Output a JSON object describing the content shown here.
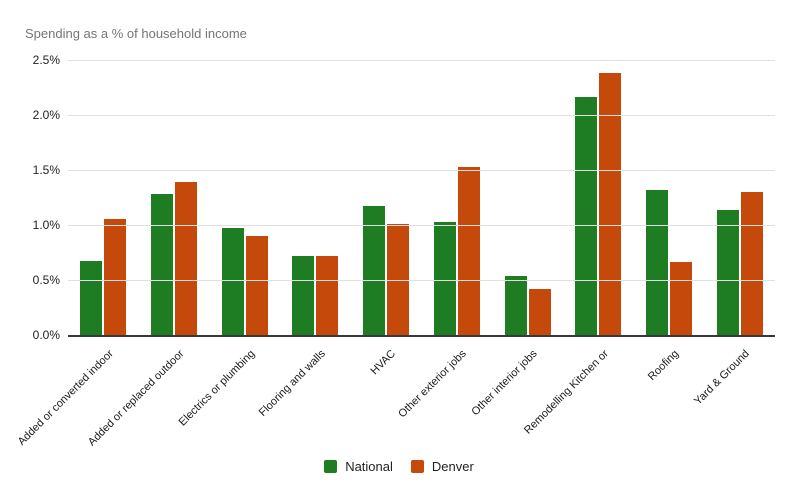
{
  "title": "Spending as a % of household income",
  "colors": {
    "national_green": "#1e7d23",
    "denver_orange": "#c6490c",
    "gridline": "#e0e0e0",
    "axis_line": "#383838",
    "title_text": "#757575",
    "tick_text": "#222222"
  },
  "chart_data": {
    "type": "bar",
    "title": "Spending as a % of household income",
    "xlabel": "",
    "ylabel": "",
    "ylim": [
      0,
      2.5
    ],
    "grid": true,
    "legend_position": "bottom",
    "ytick_values": [
      0,
      0.5,
      1.0,
      1.5,
      2.0,
      2.5
    ],
    "ytick_labels": [
      "0.0%",
      "0.5%",
      "1.0%",
      "1.5%",
      "2.0%",
      "2.5%"
    ],
    "categories": [
      "Added or converted indoor",
      "Added or replaced outdoor",
      "Electrics or plumbing",
      "Flooring and walls",
      "HVAC",
      "Other exterior jobs",
      "Other interior jobs",
      "Remodelling Kitchen or",
      "Roofing",
      "Yard & Ground"
    ],
    "series": [
      {
        "name": "National",
        "color": "#1e7d23",
        "values": [
          0.68,
          1.29,
          0.98,
          0.73,
          1.18,
          1.04,
          0.55,
          2.17,
          1.33,
          1.15
        ]
      },
      {
        "name": "Denver",
        "color": "#c6490c",
        "values": [
          1.06,
          1.4,
          0.91,
          0.73,
          1.02,
          1.54,
          0.43,
          2.39,
          0.67,
          1.31
        ]
      }
    ]
  }
}
